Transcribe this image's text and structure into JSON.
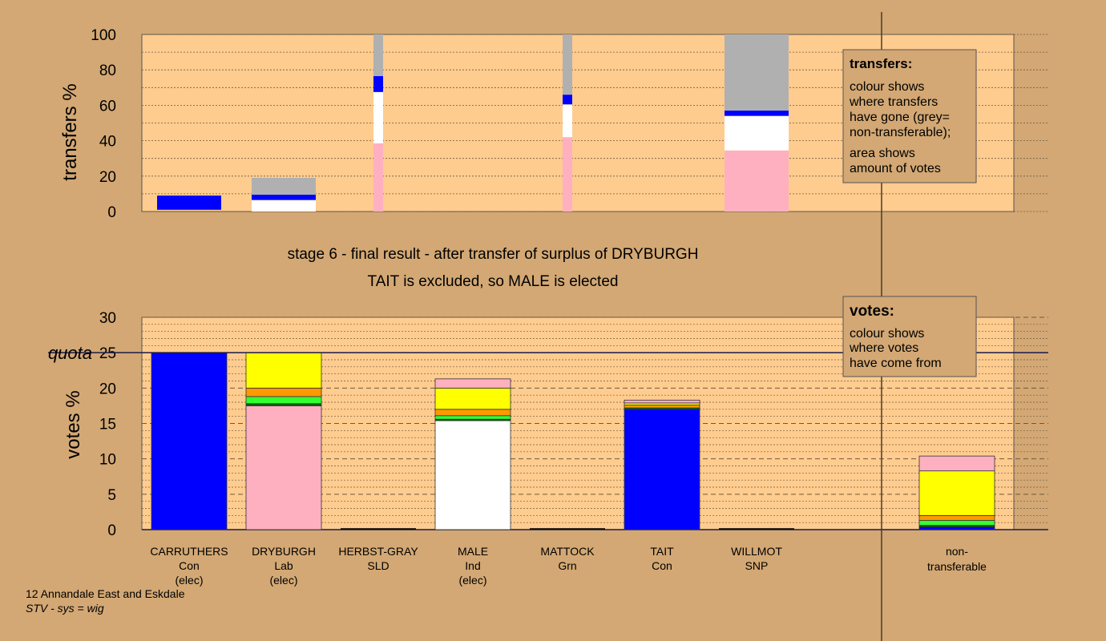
{
  "colors": {
    "page_bg": "#d3a874",
    "plot_bg": "#ffcc8f",
    "blue": "#0000ff",
    "pink": "#ffb0c0",
    "white": "#ffffff",
    "grey": "#b0b0b0",
    "yellow": "#ffff00",
    "orange": "#ff9900",
    "green": "#33ff33",
    "darkgreen": "#006600"
  },
  "stage": {
    "line1": "stage 6 - final result - after transfer of surplus of DRYBURGH",
    "line2": "TAIT is excluded, so MALE is elected"
  },
  "footer": {
    "line1": "12 Annandale East and Eskdale",
    "line2": "STV - sys = wig"
  },
  "legends": {
    "transfers": {
      "title": "transfers:",
      "lines": [
        "colour shows",
        "where transfers",
        "have gone (grey=",
        "non-transferable);"
      ],
      "lines2": [
        "area shows",
        "amount of votes"
      ]
    },
    "votes": {
      "title": "votes:",
      "lines": [
        "colour shows",
        "where votes",
        "have come from"
      ]
    }
  },
  "chart_data": [
    {
      "type": "bar",
      "ylabel": "transfers %",
      "ylim": [
        0,
        100
      ],
      "yticks": [
        0,
        20,
        40,
        60,
        80,
        100
      ],
      "grid": true,
      "bars": [
        {
          "index": 0,
          "width": "wide",
          "segments": [
            {
              "color": "blue",
              "from": 1,
              "to": 9
            }
          ]
        },
        {
          "index": 1,
          "width": "wide",
          "segments": [
            {
              "color": "white",
              "from": 0,
              "to": 6.5
            },
            {
              "color": "blue",
              "from": 6.5,
              "to": 9.5
            },
            {
              "color": "grey",
              "from": 9.5,
              "to": 19
            }
          ]
        },
        {
          "index": 2,
          "width": "thin",
          "segments": [
            {
              "color": "pink",
              "from": 0,
              "to": 38.5
            },
            {
              "color": "white",
              "from": 38.5,
              "to": 67.5
            },
            {
              "color": "blue",
              "from": 67.5,
              "to": 76.5
            },
            {
              "color": "grey",
              "from": 76.5,
              "to": 100
            }
          ]
        },
        {
          "index": 4,
          "width": "thin",
          "segments": [
            {
              "color": "pink",
              "from": 0,
              "to": 42
            },
            {
              "color": "white",
              "from": 42,
              "to": 60.5
            },
            {
              "color": "blue",
              "from": 60.5,
              "to": 66
            },
            {
              "color": "grey",
              "from": 66,
              "to": 100
            }
          ]
        },
        {
          "index": 6,
          "width": "wide",
          "segments": [
            {
              "color": "pink",
              "from": 0,
              "to": 34.5
            },
            {
              "color": "white",
              "from": 34.5,
              "to": 54
            },
            {
              "color": "blue",
              "from": 54,
              "to": 57
            },
            {
              "color": "grey",
              "from": 57,
              "to": 100
            }
          ]
        }
      ]
    },
    {
      "type": "bar",
      "ylabel": "votes %",
      "ylim": [
        0,
        30
      ],
      "yticks": [
        0,
        5,
        10,
        15,
        20,
        25,
        30
      ],
      "quota": {
        "label": "quota",
        "value": 25
      },
      "grid": true,
      "candidates": [
        {
          "name": "CARRUTHERS",
          "party": "Con",
          "status": "(elec)",
          "segments": [
            {
              "color": "blue",
              "from": 0,
              "to": 25
            }
          ]
        },
        {
          "name": "DRYBURGH",
          "party": "Lab",
          "status": "(elec)",
          "segments": [
            {
              "color": "pink",
              "from": 0,
              "to": 17.5
            },
            {
              "color": "darkgreen",
              "from": 17.5,
              "to": 17.8
            },
            {
              "color": "green",
              "from": 17.8,
              "to": 18.8
            },
            {
              "color": "orange",
              "from": 18.8,
              "to": 20
            },
            {
              "color": "yellow",
              "from": 20,
              "to": 25
            }
          ]
        },
        {
          "name": "HERBST-GRAY",
          "party": "SLD",
          "status": "",
          "segments": []
        },
        {
          "name": "MALE",
          "party": "Ind",
          "status": "(elec)",
          "segments": [
            {
              "color": "white",
              "from": 0,
              "to": 15.4
            },
            {
              "color": "darkgreen",
              "from": 15.4,
              "to": 15.6
            },
            {
              "color": "green",
              "from": 15.6,
              "to": 16.1
            },
            {
              "color": "orange",
              "from": 16.1,
              "to": 17
            },
            {
              "color": "yellow",
              "from": 17,
              "to": 20
            },
            {
              "color": "pink",
              "from": 20,
              "to": 21.3
            }
          ]
        },
        {
          "name": "MATTOCK",
          "party": "Grn",
          "status": "",
          "segments": []
        },
        {
          "name": "TAIT",
          "party": "Con",
          "status": "",
          "segments": [
            {
              "color": "blue",
              "from": 0,
              "to": 17
            },
            {
              "color": "darkgreen",
              "from": 17,
              "to": 17.2
            },
            {
              "color": "orange",
              "from": 17.2,
              "to": 17.6
            },
            {
              "color": "yellow",
              "from": 17.6,
              "to": 17.9
            },
            {
              "color": "pink",
              "from": 17.9,
              "to": 18.3
            }
          ]
        },
        {
          "name": "WILLMOT",
          "party": "SNP",
          "status": "",
          "segments": []
        }
      ],
      "nontransferable": {
        "label1": "non-",
        "label2": "transferable",
        "segments": [
          {
            "color": "blue",
            "from": 0,
            "to": 0.4
          },
          {
            "color": "darkgreen",
            "from": 0.4,
            "to": 0.6
          },
          {
            "color": "green",
            "from": 0.6,
            "to": 1.3
          },
          {
            "color": "orange",
            "from": 1.3,
            "to": 2
          },
          {
            "color": "yellow",
            "from": 2,
            "to": 8.3
          },
          {
            "color": "pink",
            "from": 8.3,
            "to": 10.4
          }
        ]
      }
    }
  ]
}
